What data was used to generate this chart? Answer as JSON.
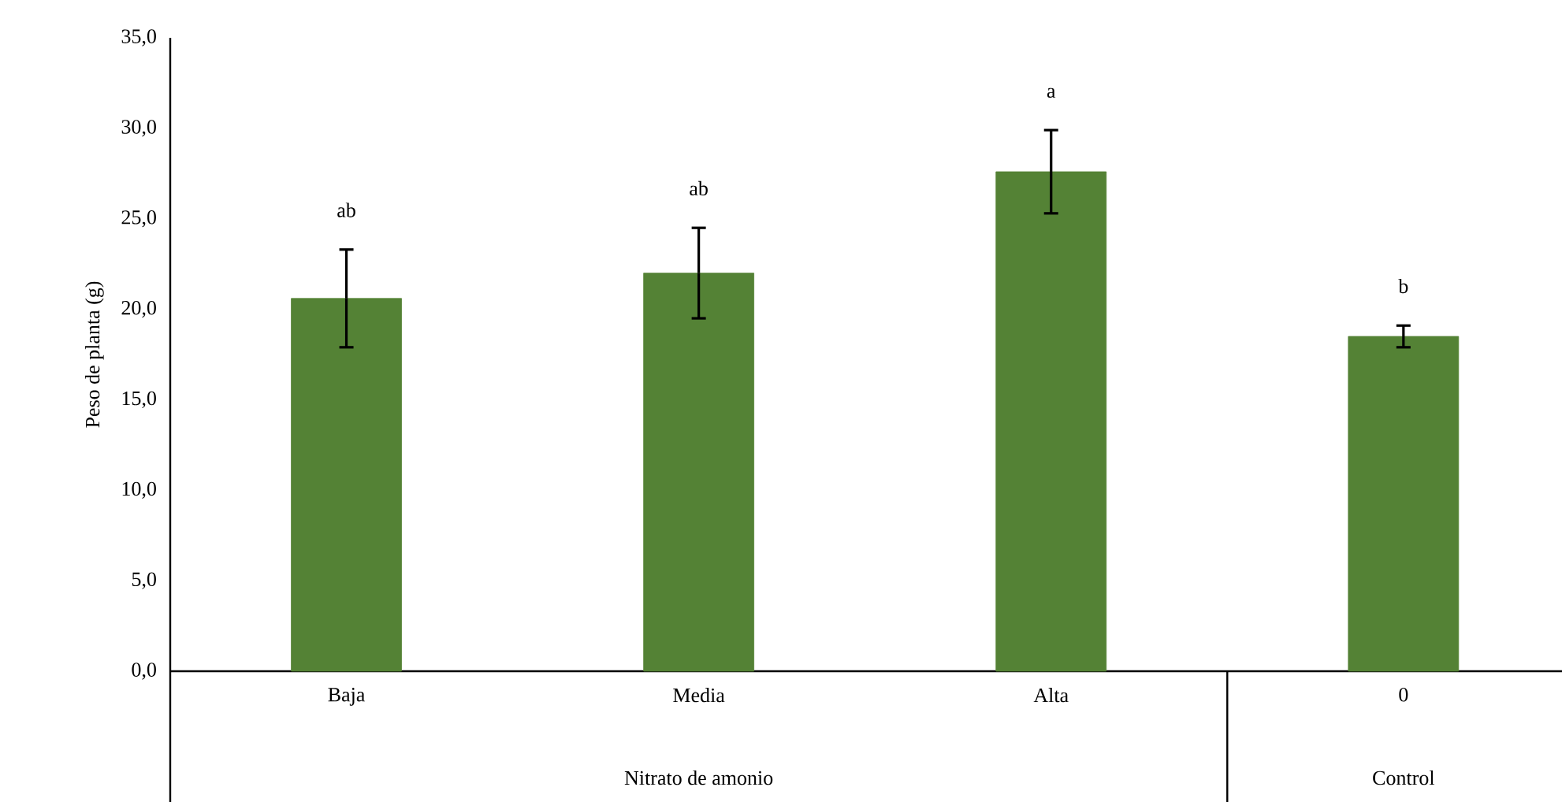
{
  "chart_data": {
    "type": "bar",
    "ylabel": "Peso de planta (g)",
    "categories": [
      "Baja",
      "Media",
      "Alta",
      "0"
    ],
    "values": [
      20.6,
      22.0,
      27.6,
      18.5
    ],
    "errors": [
      2.7,
      2.5,
      2.3,
      0.6
    ],
    "color": "#548235",
    "ylim": [
      0,
      35
    ],
    "yticks": [
      {
        "value": 0,
        "label": "0,0"
      },
      {
        "value": 5,
        "label": "5,0"
      },
      {
        "value": 10,
        "label": "10,0"
      },
      {
        "value": 15,
        "label": "15,0"
      },
      {
        "value": 20,
        "label": "20,0"
      },
      {
        "value": 25,
        "label": "25,0"
      },
      {
        "value": 30,
        "label": "30,0"
      },
      {
        "value": 35,
        "label": "35,0"
      }
    ],
    "grid": false,
    "annotations": [
      "ab",
      "ab",
      "a",
      "b",
      "Nitrato de amonio",
      "Control"
    ]
  }
}
